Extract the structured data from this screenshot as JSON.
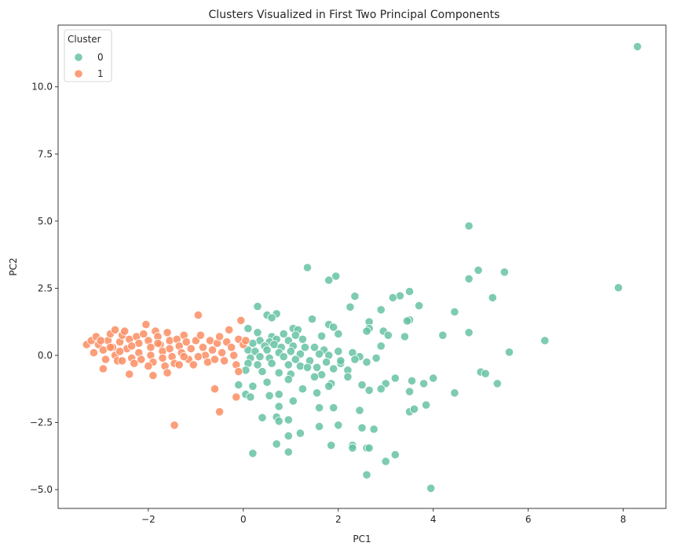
{
  "chart_data": {
    "type": "scatter",
    "title": "Clusters Visualized in First Two Principal Components",
    "xlabel": "PC1",
    "ylabel": "PC2",
    "xlim": [
      -3.9,
      8.9
    ],
    "ylim": [
      -5.7,
      12.3
    ],
    "xticks": [
      -2,
      0,
      2,
      4,
      6,
      8
    ],
    "yticks": [
      -5.0,
      -2.5,
      0.0,
      2.5,
      5.0,
      7.5,
      10.0
    ],
    "grid": false,
    "legend": {
      "title": "Cluster",
      "placement": "top-left"
    },
    "series": [
      {
        "name": "0",
        "color": "#66c2a5",
        "points": [
          [
            8.3,
            11.5
          ],
          [
            4.75,
            4.82
          ],
          [
            7.9,
            2.52
          ],
          [
            1.35,
            3.27
          ],
          [
            1.95,
            2.95
          ],
          [
            1.8,
            2.8
          ],
          [
            4.95,
            3.17
          ],
          [
            5.5,
            3.1
          ],
          [
            4.75,
            2.85
          ],
          [
            5.25,
            2.15
          ],
          [
            3.5,
            2.38
          ],
          [
            3.7,
            1.85
          ],
          [
            2.35,
            2.2
          ],
          [
            3.3,
            2.22
          ],
          [
            3.15,
            2.15
          ],
          [
            0.3,
            1.82
          ],
          [
            2.9,
            1.7
          ],
          [
            4.45,
            1.62
          ],
          [
            2.25,
            1.8
          ],
          [
            0.5,
            1.5
          ],
          [
            0.7,
            1.55
          ],
          [
            0.6,
            1.4
          ],
          [
            1.45,
            1.35
          ],
          [
            3.5,
            1.32
          ],
          [
            3.45,
            1.28
          ],
          [
            2.65,
            1.25
          ],
          [
            4.2,
            0.75
          ],
          [
            1.8,
            1.15
          ],
          [
            1.9,
            1.05
          ],
          [
            2.65,
            1.0
          ],
          [
            1.05,
            1.0
          ],
          [
            1.15,
            0.95
          ],
          [
            4.75,
            0.85
          ],
          [
            0.1,
            1.0
          ],
          [
            0.3,
            0.85
          ],
          [
            0.85,
            0.8
          ],
          [
            0.6,
            0.7
          ],
          [
            1.1,
            0.75
          ],
          [
            0.35,
            0.55
          ],
          [
            0.55,
            0.5
          ],
          [
            0.7,
            0.6
          ],
          [
            0.95,
            0.55
          ],
          [
            1.25,
            0.6
          ],
          [
            1.65,
            0.72
          ],
          [
            2.0,
            0.8
          ],
          [
            2.6,
            0.9
          ],
          [
            2.95,
            0.9
          ],
          [
            3.05,
            0.75
          ],
          [
            3.4,
            0.7
          ],
          [
            6.35,
            0.55
          ],
          [
            0.2,
            0.45
          ],
          [
            0.45,
            0.35
          ],
          [
            0.65,
            0.4
          ],
          [
            0.8,
            0.3
          ],
          [
            1.05,
            0.35
          ],
          [
            1.3,
            0.3
          ],
          [
            1.5,
            0.3
          ],
          [
            1.7,
            0.2
          ],
          [
            2.0,
            0.15
          ],
          [
            2.3,
            0.1
          ],
          [
            2.9,
            0.35
          ],
          [
            0.1,
            0.2
          ],
          [
            0.25,
            0.15
          ],
          [
            0.5,
            0.2
          ],
          [
            0.75,
            0.1
          ],
          [
            1.0,
            0.15
          ],
          [
            1.2,
            0.05
          ],
          [
            1.6,
            0.05
          ],
          [
            1.8,
            0.0
          ],
          [
            2.45,
            -0.05
          ],
          [
            2.8,
            -0.1
          ],
          [
            5.6,
            0.12
          ],
          [
            0.15,
            -0.1
          ],
          [
            0.35,
            -0.05
          ],
          [
            0.55,
            -0.1
          ],
          [
            0.85,
            -0.05
          ],
          [
            1.1,
            -0.15
          ],
          [
            1.4,
            -0.2
          ],
          [
            1.75,
            -0.25
          ],
          [
            2.05,
            -0.3
          ],
          [
            2.35,
            -0.15
          ],
          [
            2.6,
            -0.25
          ],
          [
            0.1,
            -0.3
          ],
          [
            0.3,
            -0.35
          ],
          [
            0.6,
            -0.3
          ],
          [
            0.95,
            -0.35
          ],
          [
            1.2,
            -0.4
          ],
          [
            1.55,
            -0.45
          ],
          [
            1.9,
            -0.5
          ],
          [
            2.2,
            -0.55
          ],
          [
            5.0,
            -0.62
          ],
          [
            5.1,
            -0.68
          ],
          [
            0.05,
            -0.55
          ],
          [
            0.4,
            -0.6
          ],
          [
            0.75,
            -0.65
          ],
          [
            1.0,
            -0.7
          ],
          [
            1.65,
            -0.72
          ],
          [
            2.2,
            -0.8
          ],
          [
            3.2,
            -0.85
          ],
          [
            3.55,
            -0.95
          ],
          [
            3.8,
            -1.05
          ],
          [
            4.0,
            -0.85
          ],
          [
            5.35,
            -1.05
          ],
          [
            -0.1,
            -1.1
          ],
          [
            0.2,
            -1.15
          ],
          [
            0.5,
            -1.0
          ],
          [
            1.25,
            -1.25
          ],
          [
            1.85,
            -1.05
          ],
          [
            2.5,
            -1.1
          ],
          [
            3.0,
            -1.05
          ],
          [
            0.55,
            -1.5
          ],
          [
            1.8,
            -1.15
          ],
          [
            0.05,
            -1.45
          ],
          [
            0.15,
            -1.55
          ],
          [
            0.75,
            -1.45
          ],
          [
            1.55,
            -1.4
          ],
          [
            2.65,
            -1.3
          ],
          [
            2.9,
            -1.25
          ],
          [
            3.5,
            -1.35
          ],
          [
            4.45,
            -1.4
          ],
          [
            0.75,
            -1.9
          ],
          [
            1.05,
            -1.7
          ],
          [
            1.6,
            -1.95
          ],
          [
            1.9,
            -1.95
          ],
          [
            2.45,
            -2.05
          ],
          [
            3.5,
            -2.1
          ],
          [
            3.6,
            -2.0
          ],
          [
            3.85,
            -1.85
          ],
          [
            0.4,
            -2.32
          ],
          [
            0.7,
            -2.3
          ],
          [
            0.75,
            -2.45
          ],
          [
            0.95,
            -2.4
          ],
          [
            2.0,
            -2.6
          ],
          [
            1.6,
            -2.65
          ],
          [
            2.5,
            -2.7
          ],
          [
            2.75,
            -2.75
          ],
          [
            0.95,
            -3.0
          ],
          [
            1.2,
            -2.9
          ],
          [
            0.7,
            -3.3
          ],
          [
            1.85,
            -3.35
          ],
          [
            2.3,
            -3.35
          ],
          [
            2.3,
            -3.45
          ],
          [
            2.6,
            -3.45
          ],
          [
            2.65,
            -3.45
          ],
          [
            3.2,
            -3.7
          ],
          [
            3.0,
            -3.95
          ],
          [
            0.2,
            -3.65
          ],
          [
            0.95,
            -3.6
          ],
          [
            2.6,
            -4.45
          ],
          [
            3.95,
            -4.95
          ],
          [
            0.95,
            -0.9
          ],
          [
            1.35,
            -0.45
          ],
          [
            2.05,
            -0.2
          ],
          [
            1.5,
            -0.8
          ]
        ]
      },
      {
        "name": "1",
        "color": "#fc8d62",
        "points": [
          [
            -3.3,
            0.4
          ],
          [
            -3.2,
            0.55
          ],
          [
            -3.1,
            0.7
          ],
          [
            -3.05,
            0.4
          ],
          [
            -3.15,
            0.1
          ],
          [
            -2.95,
            0.2
          ],
          [
            -2.9,
            -0.15
          ],
          [
            -2.95,
            -0.5
          ],
          [
            -2.85,
            0.55
          ],
          [
            -2.8,
            0.8
          ],
          [
            -2.7,
            0.95
          ],
          [
            -2.75,
            0.3
          ],
          [
            -2.7,
            0.0
          ],
          [
            -2.65,
            -0.2
          ],
          [
            -2.6,
            0.5
          ],
          [
            -2.55,
            0.75
          ],
          [
            -2.5,
            0.9
          ],
          [
            -2.45,
            0.25
          ],
          [
            -2.4,
            0.6
          ],
          [
            -2.35,
            -0.1
          ],
          [
            -2.3,
            -0.3
          ],
          [
            -2.25,
            0.7
          ],
          [
            -2.2,
            0.45
          ],
          [
            -2.2,
            0.1
          ],
          [
            -2.15,
            -0.15
          ],
          [
            -2.1,
            0.8
          ],
          [
            -2.05,
            1.15
          ],
          [
            -2.0,
            0.55
          ],
          [
            -1.95,
            0.3
          ],
          [
            -1.95,
            0.0
          ],
          [
            -1.9,
            -0.25
          ],
          [
            -1.85,
            0.9
          ],
          [
            -1.8,
            0.7
          ],
          [
            -1.75,
            0.4
          ],
          [
            -1.7,
            0.15
          ],
          [
            -1.7,
            -0.1
          ],
          [
            -1.65,
            -0.4
          ],
          [
            -1.6,
            0.85
          ],
          [
            -1.55,
            0.55
          ],
          [
            -1.55,
            0.25
          ],
          [
            -1.5,
            -0.05
          ],
          [
            -1.45,
            -0.3
          ],
          [
            -1.4,
            0.6
          ],
          [
            -1.35,
            0.35
          ],
          [
            -1.3,
            0.1
          ],
          [
            -1.25,
            0.75
          ],
          [
            -1.2,
            0.5
          ],
          [
            -1.15,
            -0.15
          ],
          [
            -1.1,
            0.25
          ],
          [
            -1.05,
            -0.35
          ],
          [
            -1.0,
            0.55
          ],
          [
            -0.95,
            1.5
          ],
          [
            -0.9,
            0.75
          ],
          [
            -0.85,
            0.3
          ],
          [
            -0.8,
            0.0
          ],
          [
            -0.75,
            -0.25
          ],
          [
            -0.7,
            0.55
          ],
          [
            -0.65,
            0.2
          ],
          [
            -0.6,
            -0.15
          ],
          [
            -0.55,
            0.45
          ],
          [
            -0.5,
            0.7
          ],
          [
            -0.45,
            0.1
          ],
          [
            -0.4,
            -0.2
          ],
          [
            -0.35,
            0.5
          ],
          [
            -0.3,
            0.95
          ],
          [
            -0.25,
            0.3
          ],
          [
            -0.2,
            0.0
          ],
          [
            -0.15,
            -0.35
          ],
          [
            -0.1,
            0.6
          ],
          [
            -0.05,
            1.3
          ],
          [
            0.0,
            0.4
          ],
          [
            0.05,
            0.55
          ],
          [
            -0.1,
            -0.6
          ],
          [
            -0.15,
            -1.55
          ],
          [
            -0.6,
            -1.25
          ],
          [
            -0.5,
            -2.1
          ],
          [
            -1.45,
            -2.6
          ],
          [
            -1.35,
            -0.35
          ],
          [
            -1.9,
            -0.75
          ],
          [
            -2.4,
            -0.7
          ],
          [
            -2.55,
            -0.2
          ],
          [
            -2.0,
            -0.4
          ],
          [
            -1.6,
            -0.65
          ],
          [
            -1.8,
            0.45
          ],
          [
            -2.6,
            0.15
          ],
          [
            -2.35,
            0.35
          ],
          [
            -3.0,
            0.55
          ],
          [
            -2.8,
            0.3
          ],
          [
            -1.25,
            -0.05
          ],
          [
            -0.95,
            -0.05
          ]
        ]
      }
    ]
  }
}
